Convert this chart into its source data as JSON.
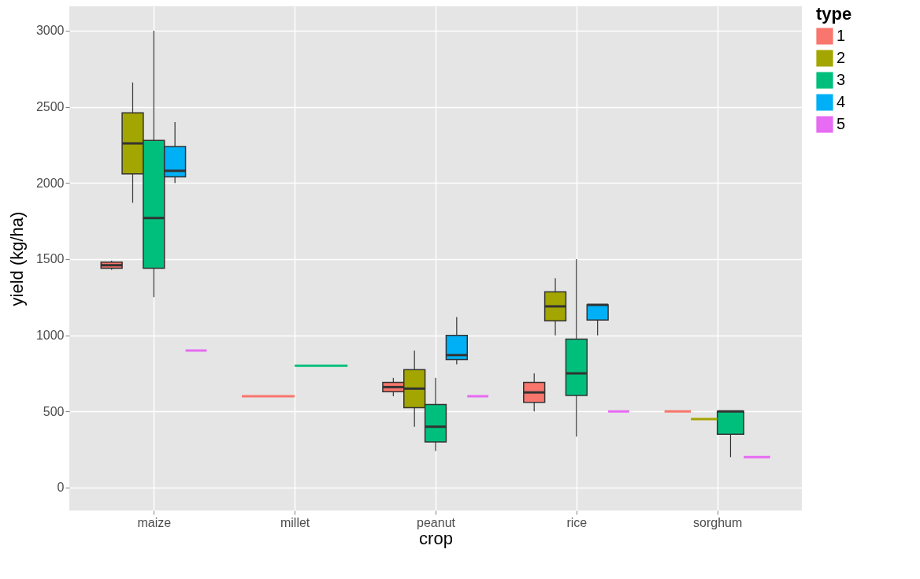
{
  "chart_data": {
    "type": "box",
    "xlabel": "crop",
    "ylabel": "yield (kg/ha)",
    "legend_title": "type",
    "legend": "right",
    "grid": true,
    "categories": [
      "maize",
      "millet",
      "peanut",
      "rice",
      "sorghum"
    ],
    "ylim": [
      -150,
      3160
    ],
    "yticks": [
      0,
      500,
      1000,
      1500,
      2000,
      2500,
      3000
    ],
    "series": [
      {
        "name": "1",
        "color": "#f8766d",
        "boxes": [
          {
            "low": 1430,
            "q1": 1440,
            "median": 1460,
            "q3": 1480,
            "high": 1490
          },
          {
            "low": 600,
            "q1": 600,
            "median": 600,
            "q3": 600,
            "high": 600
          },
          {
            "low": 600,
            "q1": 630,
            "median": 660,
            "q3": 690,
            "high": 720
          },
          {
            "low": 500,
            "q1": 560,
            "median": 625,
            "q3": 690,
            "high": 750
          },
          {
            "low": 500,
            "q1": 500,
            "median": 500,
            "q3": 500,
            "high": 500
          }
        ]
      },
      {
        "name": "2",
        "color": "#a3a500",
        "boxes": [
          {
            "low": 1870,
            "q1": 2060,
            "median": 2260,
            "q3": 2460,
            "high": 2660
          },
          null,
          {
            "low": 400,
            "q1": 525,
            "median": 650,
            "q3": 775,
            "high": 900
          },
          {
            "low": 1000,
            "q1": 1095,
            "median": 1190,
            "q3": 1285,
            "high": 1375
          },
          {
            "low": 450,
            "q1": 450,
            "median": 450,
            "q3": 450,
            "high": 450
          }
        ]
      },
      {
        "name": "3",
        "color": "#00bf7d",
        "boxes": [
          {
            "low": 1250,
            "q1": 1440,
            "median": 1770,
            "q3": 2280,
            "high": 3000
          },
          {
            "low": 800,
            "q1": 800,
            "median": 800,
            "q3": 800,
            "high": 800
          },
          {
            "low": 240,
            "q1": 300,
            "median": 400,
            "q3": 545,
            "high": 720
          },
          {
            "low": 335,
            "q1": 605,
            "median": 750,
            "q3": 975,
            "high": 1500
          },
          {
            "low": 200,
            "q1": 350,
            "median": 500,
            "q3": 500,
            "high": 500
          }
        ]
      },
      {
        "name": "4",
        "color": "#00b0f6",
        "boxes": [
          {
            "low": 2000,
            "q1": 2040,
            "median": 2080,
            "q3": 2240,
            "high": 2400
          },
          null,
          {
            "low": 810,
            "q1": 840,
            "median": 870,
            "q3": 1000,
            "high": 1120
          },
          {
            "low": 1000,
            "q1": 1100,
            "median": 1200,
            "q3": 1200,
            "high": 1200
          },
          null
        ]
      },
      {
        "name": "5",
        "color": "#e76bf3",
        "boxes": [
          {
            "low": 900,
            "q1": 900,
            "median": 900,
            "q3": 900,
            "high": 900
          },
          null,
          {
            "low": 600,
            "q1": 600,
            "median": 600,
            "q3": 600,
            "high": 600
          },
          {
            "low": 500,
            "q1": 500,
            "median": 500,
            "q3": 500,
            "high": 500
          },
          {
            "low": 200,
            "q1": 200,
            "median": 200,
            "q3": 200,
            "high": 200
          }
        ]
      }
    ]
  }
}
